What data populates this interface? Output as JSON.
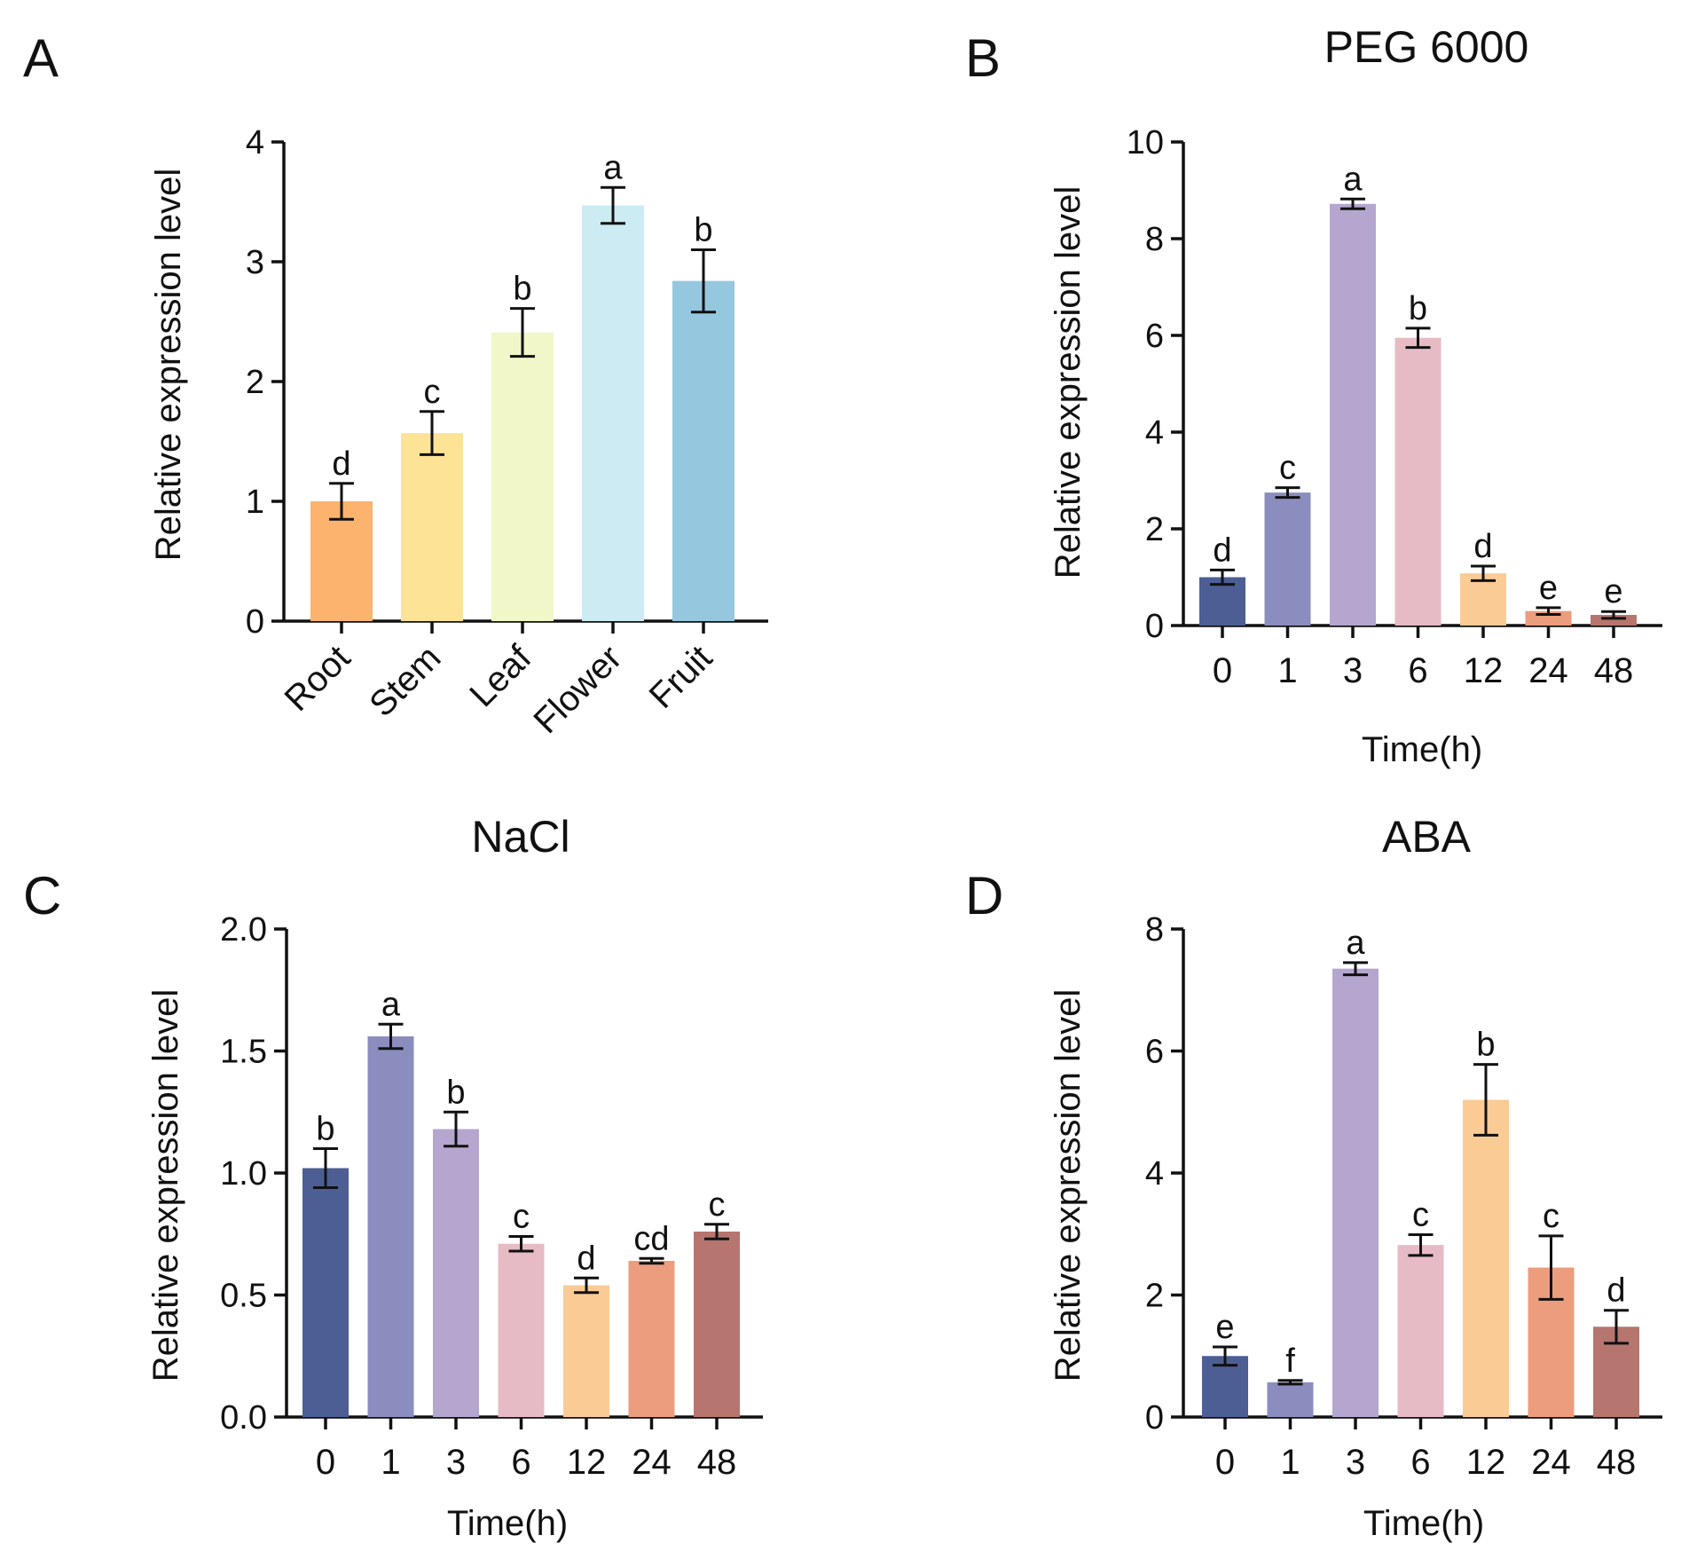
{
  "chart_data": [
    {
      "panel": "A",
      "type": "bar",
      "title": "",
      "xlabel": "",
      "ylabel": "Relative expression level",
      "ylim": [
        0,
        4
      ],
      "yticks": [
        "0",
        "1",
        "2",
        "3",
        "4"
      ],
      "categories": [
        "Root",
        "Stem",
        "Leaf",
        "Flower",
        "Fruit"
      ],
      "values": [
        1.0,
        1.57,
        2.41,
        3.47,
        2.84
      ],
      "errors": [
        0.15,
        0.18,
        0.2,
        0.15,
        0.26
      ],
      "letters": [
        "d",
        "c",
        "b",
        "a",
        "b"
      ],
      "colors": [
        "#FBB36E",
        "#FDE396",
        "#F1F7C9",
        "#CCEBF2",
        "#95C8DE"
      ],
      "rotated_ticks": true
    },
    {
      "panel": "B",
      "type": "bar",
      "title": "PEG 6000",
      "xlabel": "Time(h)",
      "ylabel": "Relative expression level",
      "ylim": [
        0,
        10
      ],
      "yticks": [
        "0",
        "2",
        "4",
        "6",
        "8",
        "10"
      ],
      "categories": [
        "0",
        "1",
        "3",
        "6",
        "12",
        "24",
        "48"
      ],
      "values": [
        1.0,
        2.75,
        8.72,
        5.95,
        1.08,
        0.3,
        0.22
      ],
      "errors": [
        0.15,
        0.1,
        0.1,
        0.2,
        0.15,
        0.07,
        0.07
      ],
      "letters": [
        "d",
        "c",
        "a",
        "b",
        "d",
        "e",
        "e"
      ],
      "colors": [
        "#4C5E94",
        "#8A8DBE",
        "#B4A6CE",
        "#E6BBC6",
        "#FBCB96",
        "#EC9D7E",
        "#B6756E"
      ],
      "rotated_ticks": false
    },
    {
      "panel": "C",
      "type": "bar",
      "title": "NaCl",
      "xlabel": "Time(h)",
      "ylabel": "Relative expression level",
      "ylim": [
        0,
        2
      ],
      "yticks": [
        "0.0",
        "0.5",
        "1.0",
        "1.5",
        "2.0"
      ],
      "categories": [
        "0",
        "1",
        "3",
        "6",
        "12",
        "24",
        "48"
      ],
      "values": [
        1.02,
        1.56,
        1.18,
        0.71,
        0.54,
        0.64,
        0.76
      ],
      "errors": [
        0.08,
        0.05,
        0.07,
        0.03,
        0.03,
        0.01,
        0.03
      ],
      "letters": [
        "b",
        "a",
        "b",
        "c",
        "d",
        "cd",
        "c"
      ],
      "colors": [
        "#4C5E94",
        "#8A8DBE",
        "#B4A6CE",
        "#E6BBC6",
        "#FBCB96",
        "#EC9D7E",
        "#B6756E"
      ],
      "rotated_ticks": false
    },
    {
      "panel": "D",
      "type": "bar",
      "title": "ABA",
      "xlabel": "Time(h)",
      "ylabel": "Relative expression level",
      "ylim": [
        0,
        8
      ],
      "yticks": [
        "0",
        "2",
        "4",
        "6",
        "8"
      ],
      "categories": [
        "0",
        "1",
        "3",
        "6",
        "12",
        "24",
        "48"
      ],
      "values": [
        1.0,
        0.57,
        7.35,
        2.82,
        5.2,
        2.45,
        1.48
      ],
      "errors": [
        0.15,
        0.03,
        0.1,
        0.17,
        0.58,
        0.52,
        0.27
      ],
      "letters": [
        "e",
        "f",
        "a",
        "c",
        "b",
        "c",
        "d"
      ],
      "colors": [
        "#4C5E94",
        "#8A8DBE",
        "#B4A6CE",
        "#E6BBC6",
        "#FBCB96",
        "#EC9D7E",
        "#B6756E"
      ],
      "rotated_ticks": false
    }
  ]
}
